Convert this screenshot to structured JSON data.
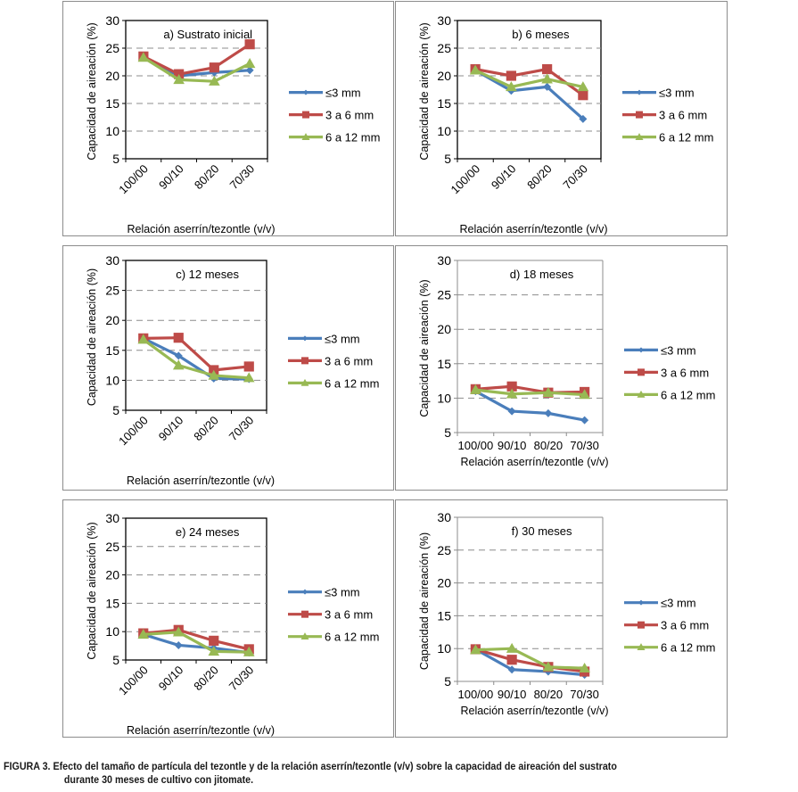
{
  "figure": {
    "caption_label": "FIGURA 3.",
    "caption_line1": "Efecto del tamaño de partícula del tezontle y de la relación aserrín/tezontle (v/v) sobre la capacidad de aireación del sustrato",
    "caption_line2": "durante 30 meses de cultivo con jitomate."
  },
  "colors": {
    "s1": "#4a7ebb",
    "s2": "#be4b48",
    "s3": "#98b954",
    "grid": "#8c8c8c"
  },
  "chart_data": [
    {
      "type": "line",
      "title": "a) Sustrato inicial",
      "xlabel": "Relación aserrín/tezontle (v/v)",
      "ylabel": "Capacidad de aireación (%)",
      "categories": [
        "100/00",
        "90/10",
        "80/20",
        "70/30"
      ],
      "ylim": [
        5,
        30
      ],
      "yticks": [
        5,
        10,
        15,
        20,
        25,
        30
      ],
      "grid": "horizontal-dashed",
      "legend": "right",
      "tick_rotation": "rotated",
      "series": [
        {
          "name": "≤3 mm",
          "marker": "diamond",
          "values": [
            23.3,
            20.0,
            20.6,
            21.0
          ]
        },
        {
          "name": "3 a 6 mm",
          "marker": "square",
          "values": [
            23.5,
            20.3,
            21.5,
            25.7
          ]
        },
        {
          "name": "6 a 12 mm",
          "marker": "triangle",
          "values": [
            23.3,
            19.3,
            19.0,
            22.2
          ]
        }
      ]
    },
    {
      "type": "line",
      "title": "b) 6 meses",
      "xlabel": "Relación aserrín/tezontle (v/v)",
      "ylabel": "Capacidad de aireación (%)",
      "categories": [
        "100/00",
        "90/10",
        "80/20",
        "70/30"
      ],
      "ylim": [
        5,
        30
      ],
      "yticks": [
        5,
        10,
        15,
        20,
        25,
        30
      ],
      "grid": "horizontal-dashed",
      "legend": "right",
      "tick_rotation": "rotated",
      "series": [
        {
          "name": "≤3 mm",
          "marker": "diamond",
          "values": [
            21.0,
            17.3,
            18.0,
            12.2
          ]
        },
        {
          "name": "3 a 6 mm",
          "marker": "square",
          "values": [
            21.2,
            20.0,
            21.2,
            16.5
          ]
        },
        {
          "name": "6 a 12 mm",
          "marker": "triangle",
          "values": [
            21.0,
            18.0,
            19.4,
            18.0
          ]
        }
      ]
    },
    {
      "type": "line",
      "title": "c) 12 meses",
      "xlabel": "Relación aserrín/tezontle (v/v)",
      "ylabel": "Capacidad de aireación (%)",
      "categories": [
        "100/00",
        "90/10",
        "80/20",
        "70/30"
      ],
      "ylim": [
        5,
        30
      ],
      "yticks": [
        5,
        10,
        15,
        20,
        25,
        30
      ],
      "grid": "horizontal-dashed",
      "legend": "right",
      "tick_rotation": "rotated",
      "series": [
        {
          "name": "≤3 mm",
          "marker": "diamond",
          "values": [
            17.0,
            14.1,
            10.3,
            10.2
          ]
        },
        {
          "name": "3 a 6 mm",
          "marker": "square",
          "values": [
            17.0,
            17.1,
            11.7,
            12.3
          ]
        },
        {
          "name": "6 a 12 mm",
          "marker": "triangle",
          "values": [
            16.8,
            12.5,
            10.8,
            10.4
          ]
        }
      ]
    },
    {
      "type": "line",
      "title": "d) 18 meses",
      "xlabel": "Relación aserrín/tezontle (v/v)",
      "ylabel": "Capacidad de aireación (%)",
      "categories": [
        "100/00",
        "90/10",
        "80/20",
        "70/30"
      ],
      "ylim": [
        5,
        30
      ],
      "yticks": [
        5,
        10,
        15,
        20,
        25,
        30
      ],
      "grid": "horizontal-dashed",
      "legend": "right",
      "tick_rotation": "horizontal",
      "series": [
        {
          "name": "≤3 mm",
          "marker": "diamond",
          "values": [
            11.0,
            8.1,
            7.8,
            6.8
          ]
        },
        {
          "name": "3 a 6 mm",
          "marker": "square",
          "values": [
            11.3,
            11.7,
            10.8,
            10.9
          ]
        },
        {
          "name": "6 a 12 mm",
          "marker": "triangle",
          "values": [
            11.2,
            10.6,
            10.8,
            10.5
          ]
        }
      ]
    },
    {
      "type": "line",
      "title": "e) 24 meses",
      "xlabel": "Relación aserrín/tezontle (v/v)",
      "ylabel": "Capacidad de aireación (%)",
      "categories": [
        "100/00",
        "90/10",
        "80/20",
        "70/30"
      ],
      "ylim": [
        5,
        30
      ],
      "yticks": [
        5,
        10,
        15,
        20,
        25,
        30
      ],
      "grid": "horizontal-dashed",
      "legend": "right",
      "tick_rotation": "rotated",
      "series": [
        {
          "name": "≤3 mm",
          "marker": "diamond",
          "values": [
            9.5,
            7.6,
            7.1,
            6.3
          ]
        },
        {
          "name": "3 a 6 mm",
          "marker": "square",
          "values": [
            9.7,
            10.3,
            8.4,
            6.9
          ]
        },
        {
          "name": "6 a 12 mm",
          "marker": "triangle",
          "values": [
            9.5,
            9.9,
            6.5,
            6.4
          ]
        }
      ]
    },
    {
      "type": "line",
      "title": "f) 30 meses",
      "xlabel": "Relación aserrín/tezontle (v/v)",
      "ylabel": "Capacidad de aireación (%)",
      "categories": [
        "100/00",
        "90/10",
        "80/20",
        "70/30"
      ],
      "ylim": [
        5,
        30
      ],
      "yticks": [
        5,
        10,
        15,
        20,
        25,
        30
      ],
      "grid": "horizontal-dashed",
      "legend": "right",
      "tick_rotation": "horizontal",
      "series": [
        {
          "name": "≤3 mm",
          "marker": "diamond",
          "values": [
            9.9,
            6.8,
            6.5,
            6.0
          ]
        },
        {
          "name": "3 a 6 mm",
          "marker": "square",
          "values": [
            9.9,
            8.3,
            7.2,
            6.5
          ]
        },
        {
          "name": "6 a 12 mm",
          "marker": "triangle",
          "values": [
            9.8,
            10.0,
            7.2,
            7.0
          ]
        }
      ]
    }
  ]
}
